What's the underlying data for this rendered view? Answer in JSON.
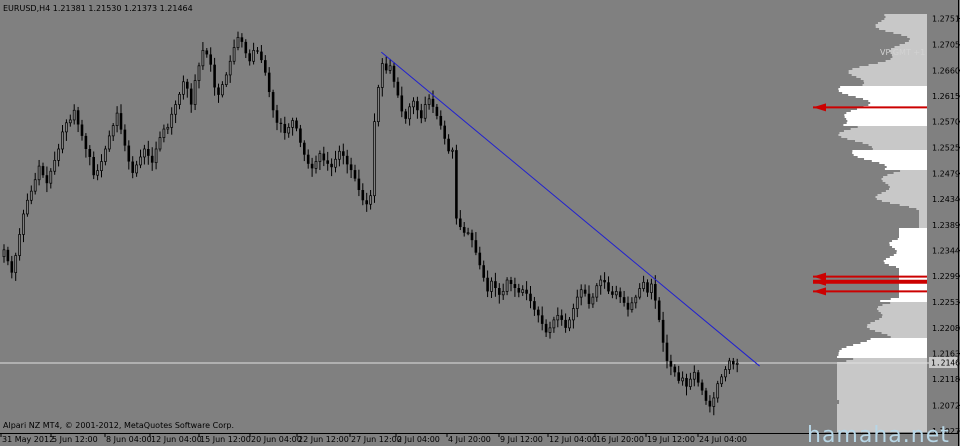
{
  "title": "EURUSD,H4  1.21381 1.21530 1.21373 1.21464",
  "copyright": "Alpari NZ MT4, © 2001-2012, MetaQuotes Software Corp.",
  "watermark": "hamaha.net",
  "vp_label": "VP GMT +1",
  "current_price_label": "1.21464",
  "colors": {
    "background": "#808080",
    "candle": "#000000",
    "trendline": "#2020d0",
    "profile": "#c8c8c8",
    "profile_hi": "#ffffff",
    "level": "#cc0000",
    "price_line": "#e0e0e0"
  },
  "chart_data": {
    "type": "candlestick",
    "symbol": "EURUSD",
    "timeframe": "H4",
    "last_bar": {
      "open": 1.21381,
      "high": 1.2153,
      "low": 1.21373,
      "close": 1.21464
    },
    "y_ticks": [
      "1.27510",
      "1.27050",
      "1.26600",
      "1.26150",
      "1.25700",
      "1.25250",
      "1.24790",
      "1.24340",
      "1.23890",
      "1.23440",
      "1.22990",
      "1.22530",
      "1.22080",
      "1.21630",
      "1.21180",
      "1.20720",
      "1.20270"
    ],
    "x_ticks": [
      "31 May 2012",
      "5 Jun 12:00",
      "8 Jun 04:00",
      "12 Jun 04:00",
      "15 Jun 12:00",
      "20 Jun 04:00",
      "22 Jun 12:00",
      "27 Jun 12:00",
      "2 Jul 04:00",
      "4 Jul 20:00",
      "9 Jul 12:00",
      "12 Jul 04:00",
      "16 Jul 20:00",
      "19 Jul 12:00",
      "24 Jul 04:00"
    ],
    "y_range": [
      1.2027,
      1.2773
    ],
    "current_price": 1.21464,
    "trendline": {
      "start": {
        "bar": 97,
        "price": 1.2692
      },
      "end": {
        "bar": 194,
        "price": 1.2141
      }
    },
    "key_levels": [
      1.2595,
      1.2298,
      1.2272,
      1.2289
    ],
    "closes": [
      1.2345,
      1.2325,
      1.2305,
      1.2335,
      1.2372,
      1.2408,
      1.2432,
      1.2448,
      1.2468,
      1.2492,
      1.2476,
      1.2462,
      1.2483,
      1.2502,
      1.2522,
      1.2552,
      1.2568,
      1.2573,
      1.259,
      1.2565,
      1.2545,
      1.2522,
      1.2508,
      1.2476,
      1.2484,
      1.25,
      1.2522,
      1.2545,
      1.2563,
      1.2585,
      1.2556,
      1.2528,
      1.25,
      1.248,
      1.2494,
      1.2508,
      1.2522,
      1.251,
      1.2498,
      1.2522,
      1.2542,
      1.2557,
      1.256,
      1.2583,
      1.26,
      1.2618,
      1.264,
      1.2628,
      1.26,
      1.2642,
      1.2668,
      1.2695,
      1.2688,
      1.267,
      1.263,
      1.2617,
      1.2635,
      1.2652,
      1.2676,
      1.27,
      1.2718,
      1.271,
      1.269,
      1.2676,
      1.2695,
      1.2693,
      1.2678,
      1.2656,
      1.2622,
      1.259,
      1.2568,
      1.2566,
      1.255,
      1.256,
      1.2572,
      1.2558,
      1.2533,
      1.2512,
      1.2496,
      1.2488,
      1.25,
      1.2514,
      1.2502,
      1.2496,
      1.249,
      1.2504,
      1.2518,
      1.251,
      1.2495,
      1.2485,
      1.247,
      1.245,
      1.2432,
      1.2425,
      1.244,
      1.257,
      1.263,
      1.2672,
      1.266,
      1.2668,
      1.264,
      1.2616,
      1.2588,
      1.2575,
      1.2596,
      1.2606,
      1.259,
      1.2576,
      1.26,
      1.261,
      1.2596,
      1.258,
      1.2563,
      1.254,
      1.2518,
      1.252,
      1.24,
      1.2385,
      1.2375,
      1.2375,
      1.2362,
      1.234,
      1.2318,
      1.2296,
      1.2272,
      1.229,
      1.2278,
      1.2266,
      1.2272,
      1.2292,
      1.2285,
      1.2278,
      1.227,
      1.2275,
      1.2268,
      1.2255,
      1.224,
      1.223,
      1.2215,
      1.22,
      1.2208,
      1.2222,
      1.223,
      1.2222,
      1.2208,
      1.2222,
      1.2242,
      1.2262,
      1.2275,
      1.2268,
      1.225,
      1.2262,
      1.2282,
      1.2292,
      1.2288,
      1.2272,
      1.2266,
      1.2272,
      1.2262,
      1.2252,
      1.224,
      1.2252,
      1.2262,
      1.2277,
      1.2288,
      1.227,
      1.2285,
      1.2256,
      1.2222,
      1.2182,
      1.215,
      1.214,
      1.213,
      1.2115,
      1.212,
      1.2105,
      1.2118,
      1.213,
      1.2112,
      1.2098,
      1.208,
      1.207,
      1.2085,
      1.211,
      1.2122,
      1.2135,
      1.215,
      1.2144,
      1.2146
    ]
  }
}
